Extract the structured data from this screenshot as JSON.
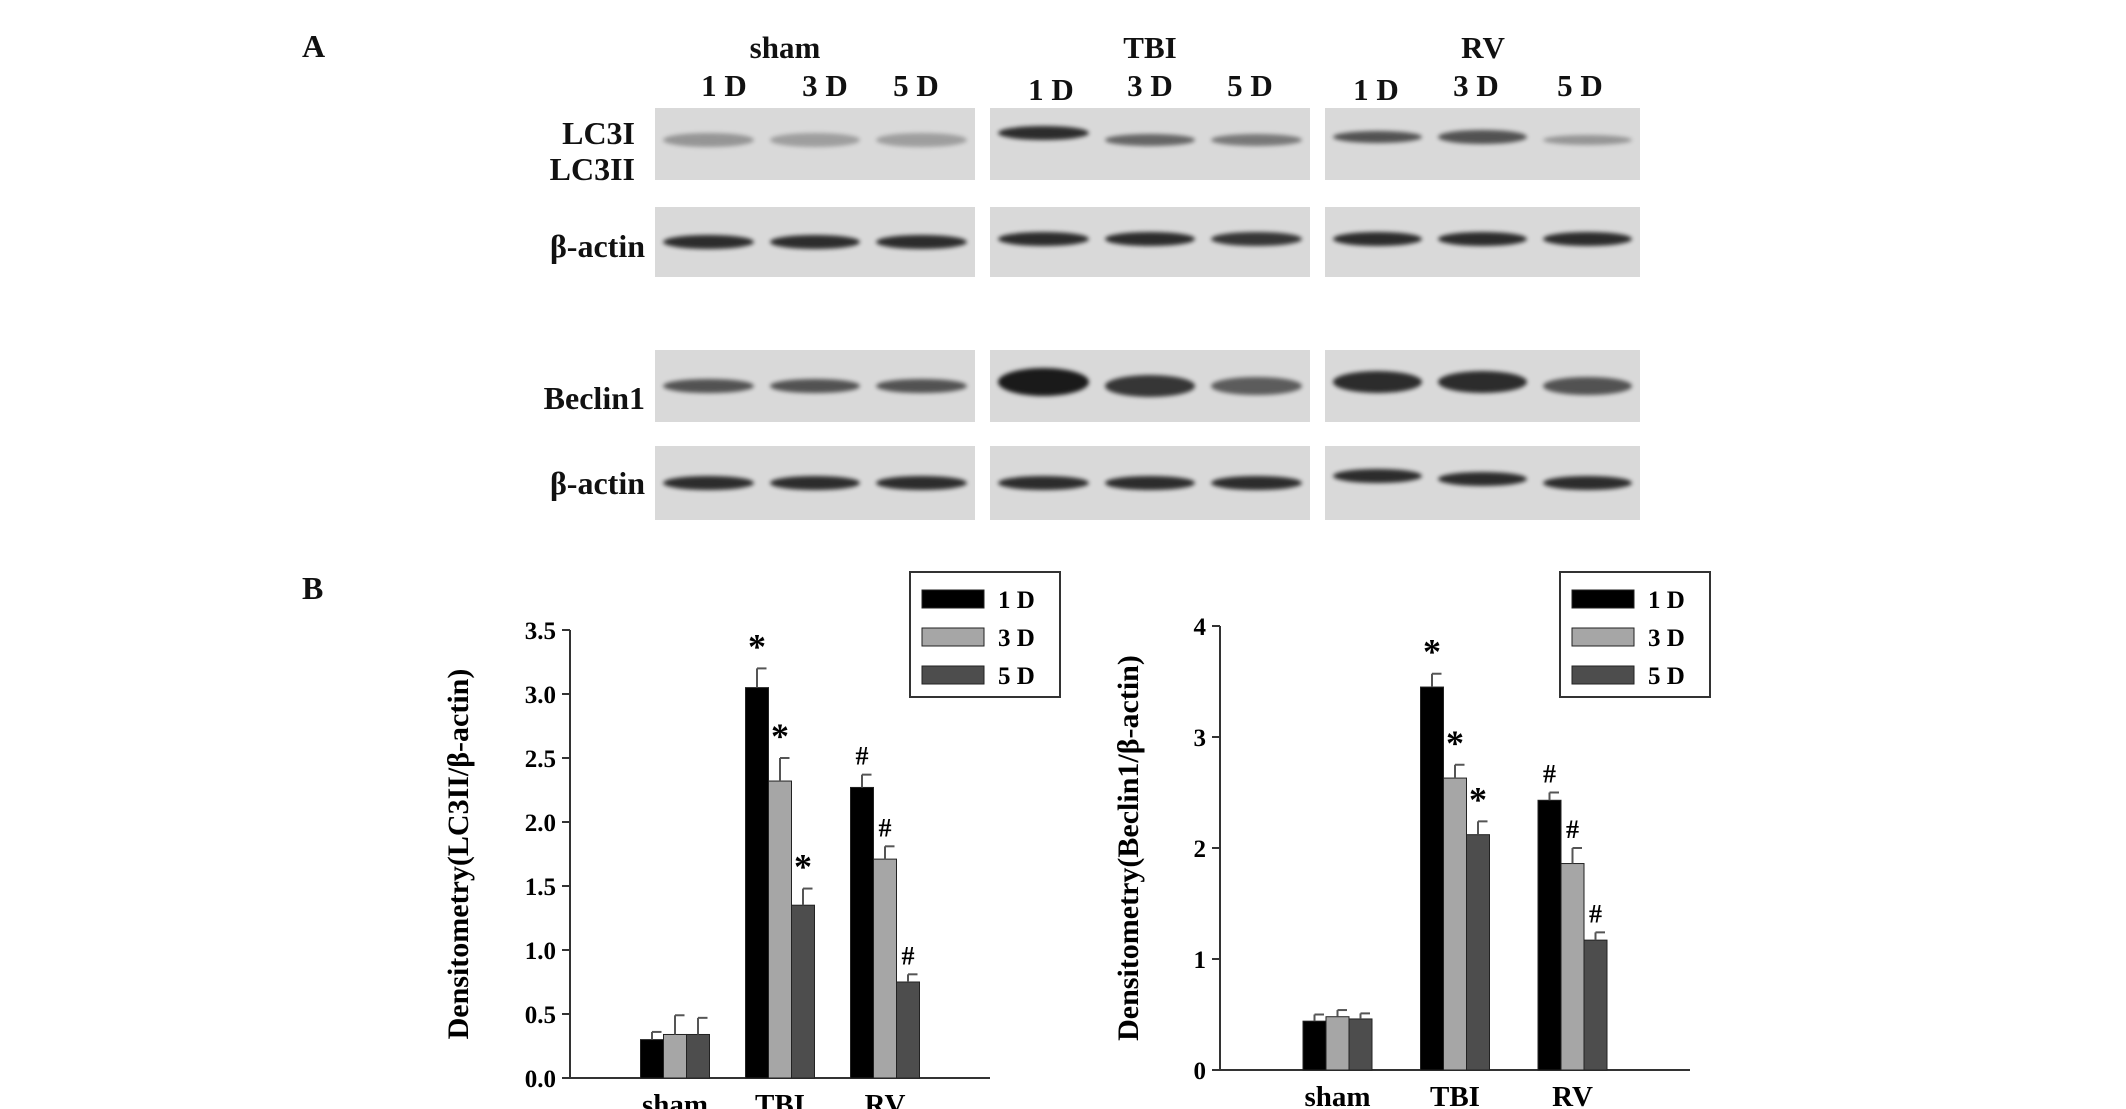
{
  "panel_a": {
    "letter": "A",
    "group_labels": [
      "sham",
      "TBI",
      "RV"
    ],
    "lane_labels": [
      "1 D",
      "3 D",
      "5 D"
    ],
    "row_labels": {
      "lc3_upper": "LC3I",
      "lc3_lower": "LC3II",
      "actin": "β-actin",
      "beclin": "Beclin1"
    },
    "blot_colors": {
      "background": "#d9d9d9",
      "band": "#1a1a1a"
    }
  },
  "panel_b": {
    "letter": "B"
  },
  "chart_data": [
    {
      "type": "bar",
      "ylabel": "Densitometry(LC3II/β-actin)",
      "categories": [
        "sham",
        "TBI",
        "RV"
      ],
      "ylim": [
        0,
        3.5
      ],
      "yticks": [
        "0.0",
        "0.5",
        "1.0",
        "1.5",
        "2.0",
        "2.5",
        "3.0",
        "3.5"
      ],
      "legend_position": "top-right",
      "series": [
        {
          "name": "1 D",
          "color": "#000000",
          "values": [
            0.3,
            3.05,
            2.27
          ],
          "errors": [
            0.06,
            0.15,
            0.1
          ],
          "marks": [
            "",
            "*",
            "#"
          ]
        },
        {
          "name": "3 D",
          "color": "#a6a6a6",
          "values": [
            0.34,
            2.32,
            1.71
          ],
          "errors": [
            0.15,
            0.18,
            0.1
          ],
          "marks": [
            "",
            "*",
            "#"
          ]
        },
        {
          "name": "5 D",
          "color": "#4d4d4d",
          "values": [
            0.34,
            1.35,
            0.75
          ],
          "errors": [
            0.13,
            0.13,
            0.06
          ],
          "marks": [
            "",
            "*",
            "#"
          ]
        }
      ]
    },
    {
      "type": "bar",
      "ylabel": "Densitometry(Beclin1/β-actin)",
      "categories": [
        "sham",
        "TBI",
        "RV"
      ],
      "ylim": [
        0,
        4
      ],
      "yticks": [
        "0",
        "1",
        "2",
        "3",
        "4"
      ],
      "legend_position": "top-right",
      "series": [
        {
          "name": "1 D",
          "color": "#000000",
          "values": [
            0.44,
            3.45,
            2.43
          ],
          "errors": [
            0.06,
            0.12,
            0.07
          ],
          "marks": [
            "",
            "*",
            "#"
          ]
        },
        {
          "name": "3 D",
          "color": "#a6a6a6",
          "values": [
            0.48,
            2.63,
            1.86
          ],
          "errors": [
            0.06,
            0.12,
            0.14
          ],
          "marks": [
            "",
            "*",
            "#"
          ]
        },
        {
          "name": "5 D",
          "color": "#4d4d4d",
          "values": [
            0.46,
            2.12,
            1.17
          ],
          "errors": [
            0.05,
            0.12,
            0.07
          ],
          "marks": [
            "",
            "*",
            "#"
          ]
        }
      ]
    }
  ]
}
